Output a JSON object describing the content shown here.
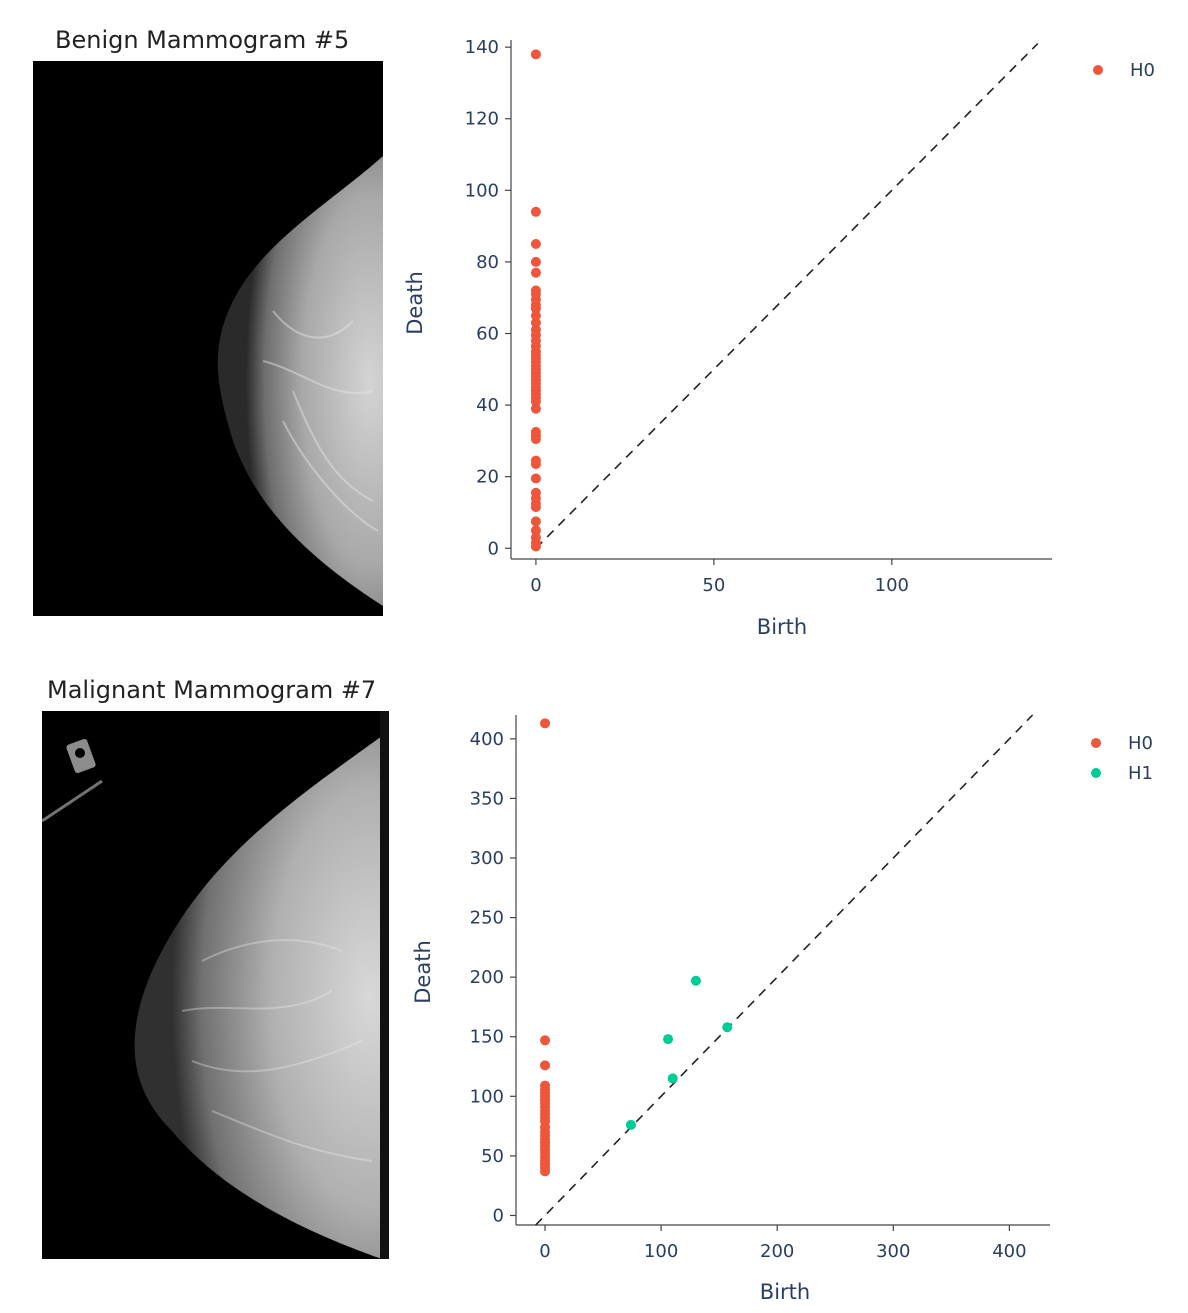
{
  "panels": [
    {
      "image_title": "Benign Mammogram #5",
      "image_icon": "mammogram-image"
    },
    {
      "image_title": "Malignant Mammogram #7",
      "image_icon": "mammogram-image"
    }
  ],
  "colors": {
    "H0": "#ef553b",
    "H1": "#00cc96",
    "axis_text": "#2a3f5f",
    "diagonal": "#222222"
  },
  "chart_data": [
    {
      "type": "scatter",
      "title": "",
      "xlabel": "Birth",
      "ylabel": "Death",
      "xlim": [
        -7,
        145
      ],
      "ylim": [
        -3,
        142
      ],
      "x_ticks": [
        0,
        50,
        100
      ],
      "y_ticks": [
        0,
        20,
        40,
        60,
        80,
        100,
        120,
        140
      ],
      "diagonal": {
        "style": "dashed",
        "from": [
          0,
          0
        ],
        "to": [
          141,
          141
        ]
      },
      "legend_position": "top-right",
      "series": [
        {
          "name": "H0",
          "color": "#ef553b",
          "points": [
            [
              0,
              138
            ],
            [
              0,
              94
            ],
            [
              0,
              85
            ],
            [
              0,
              80
            ],
            [
              0,
              77
            ],
            [
              0,
              72
            ],
            [
              0,
              71
            ],
            [
              0,
              69.5
            ],
            [
              0,
              68
            ],
            [
              0,
              67
            ],
            [
              0,
              65
            ],
            [
              0,
              63
            ],
            [
              0,
              61
            ],
            [
              0,
              59.5
            ],
            [
              0,
              58
            ],
            [
              0,
              56.5
            ],
            [
              0,
              55
            ],
            [
              0,
              54
            ],
            [
              0,
              53
            ],
            [
              0,
              52
            ],
            [
              0,
              51
            ],
            [
              0,
              50
            ],
            [
              0,
              49
            ],
            [
              0,
              48
            ],
            [
              0,
              47
            ],
            [
              0,
              46
            ],
            [
              0,
              45
            ],
            [
              0,
              44
            ],
            [
              0,
              43
            ],
            [
              0,
              42
            ],
            [
              0,
              41
            ],
            [
              0,
              39
            ],
            [
              0,
              32.5
            ],
            [
              0,
              31.5
            ],
            [
              0,
              30.5
            ],
            [
              0,
              24.5
            ],
            [
              0,
              23.5
            ],
            [
              0,
              19.5
            ],
            [
              0,
              15.5
            ],
            [
              0,
              14
            ],
            [
              0,
              12.5
            ],
            [
              0,
              11.5
            ],
            [
              0,
              7.5
            ],
            [
              0,
              5
            ],
            [
              0,
              3
            ],
            [
              0,
              1.5
            ],
            [
              0,
              0.5
            ]
          ]
        }
      ]
    },
    {
      "type": "scatter",
      "title": "",
      "xlabel": "Birth",
      "ylabel": "Death",
      "xlim": [
        -25,
        435
      ],
      "ylim": [
        -8,
        420
      ],
      "x_ticks": [
        0,
        100,
        200,
        300,
        400
      ],
      "y_ticks": [
        0,
        50,
        100,
        150,
        200,
        250,
        300,
        350,
        400
      ],
      "diagonal": {
        "style": "dashed",
        "from": [
          -8,
          -8
        ],
        "to": [
          420,
          420
        ]
      },
      "legend_position": "top-right",
      "series": [
        {
          "name": "H0",
          "color": "#ef553b",
          "points": [
            [
              0,
              413
            ],
            [
              0,
              147
            ],
            [
              0,
              126
            ],
            [
              0,
              109
            ],
            [
              0,
              106
            ],
            [
              0,
              103
            ],
            [
              0,
              100
            ],
            [
              0,
              97
            ],
            [
              0,
              94
            ],
            [
              0,
              91
            ],
            [
              0,
              88
            ],
            [
              0,
              85
            ],
            [
              0,
              82
            ],
            [
              0,
              79
            ],
            [
              0,
              74
            ],
            [
              0,
              70
            ],
            [
              0,
              67
            ],
            [
              0,
              64
            ],
            [
              0,
              61
            ],
            [
              0,
              58
            ],
            [
              0,
              55
            ],
            [
              0,
              52
            ],
            [
              0,
              49
            ],
            [
              0,
              46
            ],
            [
              0,
              43
            ],
            [
              0,
              40
            ],
            [
              0,
              37
            ]
          ]
        },
        {
          "name": "H1",
          "color": "#00cc96",
          "points": [
            [
              130,
              197
            ],
            [
              106,
              148
            ],
            [
              157,
              158
            ],
            [
              110,
              115
            ],
            [
              74,
              76
            ]
          ]
        }
      ]
    }
  ]
}
